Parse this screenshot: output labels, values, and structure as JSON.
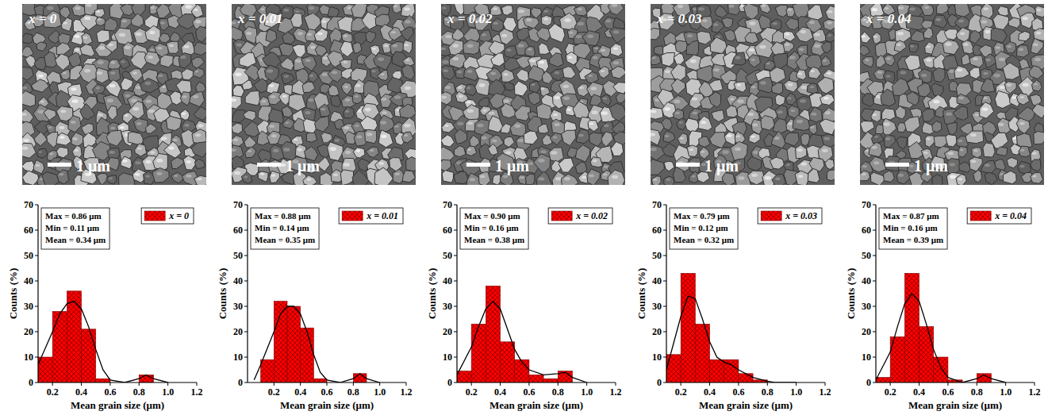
{
  "chart_data": [
    {
      "type": "histogram",
      "x_label": "Mean grain size (μm)",
      "y_label": "Counts (%)",
      "bins": [
        0.1,
        0.2,
        0.3,
        0.4,
        0.5,
        0.6,
        0.7,
        0.8,
        0.9
      ],
      "series": [
        {
          "name": "x = 0",
          "color": "#ff0000",
          "values": [
            10,
            28,
            36,
            21,
            1.5,
            0,
            0,
            3
          ]
        },
        {
          "type": "line",
          "color": "#000000",
          "x": [
            0.1,
            0.2,
            0.25,
            0.3,
            0.35,
            0.4,
            0.45,
            0.5,
            0.55,
            0.6,
            0.7,
            0.8,
            0.85,
            0.9,
            1.0
          ],
          "values": [
            7,
            20,
            27,
            31,
            32,
            29,
            22,
            13,
            5,
            1,
            0,
            1.5,
            3,
            1.5,
            0
          ]
        }
      ],
      "annotations": [
        "Max = 0.86 μm",
        "Min = 0.11 μm",
        "Mean = 0.34 μm"
      ],
      "xlim": [
        0.1,
        1.2
      ],
      "ylim": [
        0,
        70
      ],
      "xticks": [
        0.2,
        0.4,
        0.6,
        0.8,
        {
          "value": 1,
          "label": "1.0"
        },
        1.2
      ],
      "yticks": [
        0,
        10,
        20,
        30,
        40,
        50,
        60,
        70
      ],
      "legend": "top-right",
      "grid": false
    },
    {
      "type": "histogram",
      "x_label": "Mean grain size (μm)",
      "y_label": "Counts (%)",
      "bins": [
        0.1,
        0.2,
        0.3,
        0.4,
        0.5,
        0.6,
        0.7,
        0.8,
        0.9
      ],
      "series": [
        {
          "name": "x = 0.01",
          "color": "#ff0000",
          "values": [
            9,
            32,
            30,
            21.5,
            1.5,
            0,
            0,
            3.5
          ]
        },
        {
          "type": "line",
          "color": "#000000",
          "x": [
            0.05,
            0.1,
            0.2,
            0.25,
            0.3,
            0.35,
            0.4,
            0.45,
            0.5,
            0.55,
            0.6,
            0.7,
            0.8,
            0.85,
            0.9,
            1.0
          ],
          "values": [
            1,
            7,
            20,
            27,
            30,
            30,
            27,
            20,
            11,
            4,
            1,
            0,
            1.5,
            3.5,
            1.5,
            0
          ]
        }
      ],
      "annotations": [
        "Max = 0.88 μm",
        "Min = 0.14 μm",
        "Mean = 0.35 μm"
      ],
      "xlim": [
        0,
        1.2
      ],
      "ylim": [
        0,
        70
      ],
      "xticks": [
        0.2,
        0.4,
        0.6,
        0.8,
        {
          "value": 1,
          "label": "1.0"
        },
        1.2
      ],
      "yticks": [
        0,
        10,
        20,
        30,
        40,
        50,
        60,
        70
      ],
      "legend": "top-right",
      "grid": false
    },
    {
      "type": "histogram",
      "x_label": "Mean grain size (μm)",
      "y_label": "Counts (%)",
      "bins": [
        0.1,
        0.2,
        0.3,
        0.4,
        0.5,
        0.6,
        0.7,
        0.8,
        0.9
      ],
      "series": [
        {
          "name": "x = 0.02",
          "color": "#ff0000",
          "values": [
            4.5,
            23,
            38,
            16,
            9,
            3,
            1.5,
            4.5
          ]
        },
        {
          "type": "line",
          "color": "#000000",
          "x": [
            0.1,
            0.2,
            0.25,
            0.3,
            0.35,
            0.4,
            0.45,
            0.5,
            0.55,
            0.6,
            0.7,
            0.8,
            0.85,
            0.9,
            1.0
          ],
          "values": [
            3,
            14,
            22,
            29,
            32,
            29,
            21,
            13,
            8,
            5,
            3,
            3.5,
            4,
            2,
            0
          ]
        }
      ],
      "annotations": [
        "Max = 0.90 μm",
        "Min = 0.16 μm",
        "Mean = 0.38 μm"
      ],
      "xlim": [
        0.1,
        1.2
      ],
      "ylim": [
        0,
        70
      ],
      "xticks": [
        0.2,
        0.4,
        0.6,
        0.8,
        {
          "value": 1,
          "label": "1.0"
        },
        1.2
      ],
      "yticks": [
        0,
        10,
        20,
        30,
        40,
        50,
        60,
        70
      ],
      "legend": "top-right",
      "grid": false
    },
    {
      "type": "histogram",
      "x_label": "Mean grain size (μm)",
      "y_label": "Counts (%)",
      "bins": [
        0.1,
        0.2,
        0.3,
        0.4,
        0.5,
        0.6,
        0.7,
        0.8,
        0.9
      ],
      "series": [
        {
          "name": "x = 0.03",
          "color": "#ff0000",
          "values": [
            11,
            43,
            23,
            9,
            9,
            3.5,
            1,
            0
          ]
        },
        {
          "type": "line",
          "color": "#000000",
          "x": [
            0.1,
            0.2,
            0.25,
            0.3,
            0.35,
            0.4,
            0.45,
            0.5,
            0.55,
            0.6,
            0.7,
            0.8,
            0.85,
            0.9,
            1.0
          ],
          "values": [
            5,
            26,
            34,
            33,
            25,
            16,
            10,
            8,
            7,
            5,
            2,
            0.5,
            0,
            0,
            0
          ]
        }
      ],
      "annotations": [
        "Max = 0.79 μm",
        "Min = 0.12 μm",
        "Mean = 0.32 μm"
      ],
      "xlim": [
        0.1,
        1.2
      ],
      "ylim": [
        0,
        70
      ],
      "xticks": [
        0.2,
        0.4,
        0.6,
        0.8,
        {
          "value": 1,
          "label": "1.0"
        },
        1.2
      ],
      "yticks": [
        0,
        10,
        20,
        30,
        40,
        50,
        60,
        70
      ],
      "legend": "top-right",
      "grid": false
    },
    {
      "type": "histogram",
      "x_label": "Mean grain size (μm)",
      "y_label": "Counts (%)",
      "bins": [
        0.1,
        0.2,
        0.3,
        0.4,
        0.5,
        0.6,
        0.7,
        0.8,
        0.9
      ],
      "series": [
        {
          "name": "x = 0.04",
          "color": "#ff0000",
          "values": [
            2,
            18,
            43,
            22,
            10,
            1,
            0,
            3.5
          ]
        },
        {
          "type": "line",
          "color": "#000000",
          "x": [
            0.1,
            0.2,
            0.25,
            0.3,
            0.35,
            0.4,
            0.45,
            0.5,
            0.55,
            0.6,
            0.7,
            0.8,
            0.85,
            0.9,
            1.0
          ],
          "values": [
            1,
            12,
            22,
            31,
            35,
            32,
            23,
            13,
            6,
            2,
            0,
            1.5,
            3,
            1.5,
            0
          ]
        }
      ],
      "annotations": [
        "Max = 0.87 μm",
        "Min = 0.16 μm",
        "Mean = 0.39 μm"
      ],
      "xlim": [
        0.1,
        1.2
      ],
      "ylim": [
        0,
        70
      ],
      "xticks": [
        0.2,
        0.4,
        0.6,
        0.8,
        {
          "value": 1,
          "label": "1.0"
        },
        1.2
      ],
      "yticks": [
        0,
        10,
        20,
        30,
        40,
        50,
        60,
        70
      ],
      "legend": "top-right",
      "grid": false
    }
  ],
  "micrographs": [
    {
      "label": "x = 0",
      "scale_bar": "1 μm"
    },
    {
      "label": "x = 0.01",
      "scale_bar": "1 μm"
    },
    {
      "label": "x = 0.02",
      "scale_bar": "1 μm"
    },
    {
      "label": "x = 0.03",
      "scale_bar": "1 μm"
    },
    {
      "label": "x = 0.04",
      "scale_bar": "1 μm"
    }
  ]
}
